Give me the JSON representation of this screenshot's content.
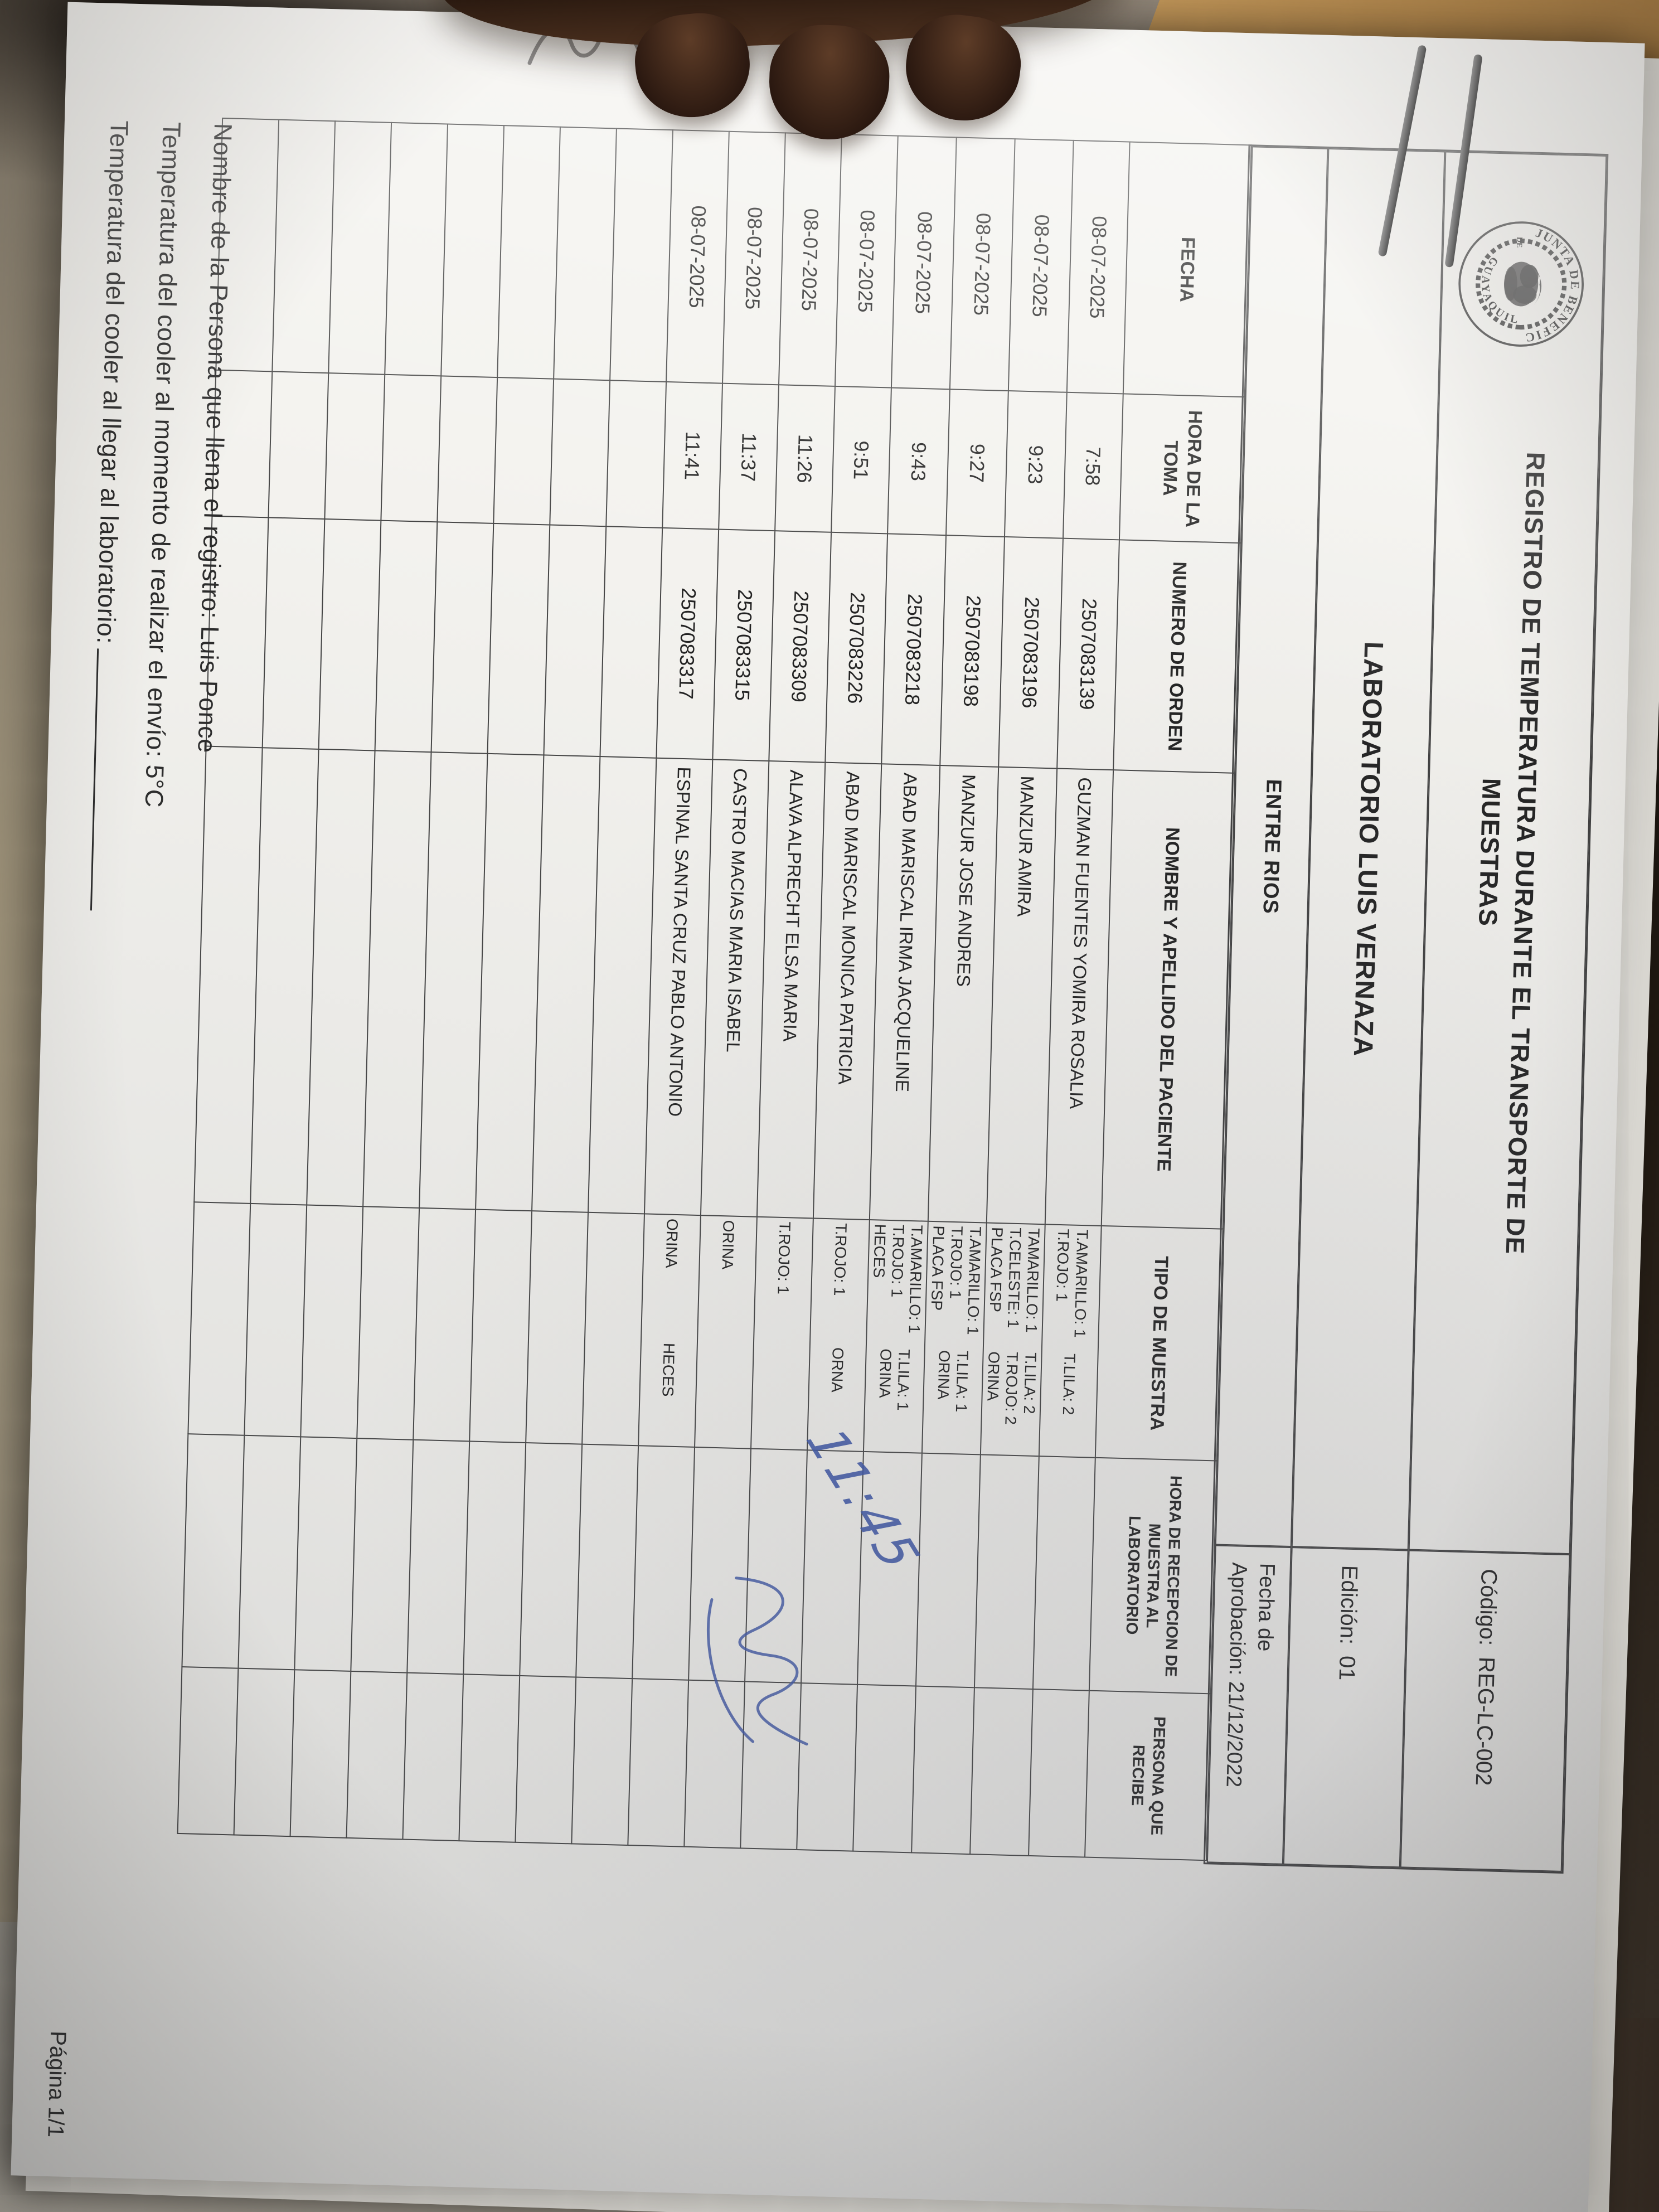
{
  "colors": {
    "ink_blue": "#3b55a8",
    "paper": "#f3f2ee",
    "table_line": "#454545"
  },
  "header": {
    "title_line1": "REGISTRO DE TEMPERATURA DURANTE EL TRANSPORTE DE",
    "title_line2": "MUESTRAS",
    "codigo_label": "Código:",
    "codigo_value": "REG-LC-002",
    "edicion_label": "Edición:",
    "edicion_value": "01",
    "fecha_label_line1": "Fecha de",
    "fecha_label_line2": "Aprobación:",
    "fecha_value": "21/12/2022",
    "laboratorio": "LABORATORIO LUIS VERNAZA",
    "sede": "ENTRE RIOS",
    "seal_top": "JUNTA DE BENEFICENCIA",
    "seal_middle": "DE",
    "seal_bottom": "GUAYAQUIL"
  },
  "table": {
    "columns": [
      "FECHA",
      "HORA DE LA TOMA",
      "NUMERO DE ORDEN",
      "NOMBRE Y APELLIDO DEL PACIENTE",
      "TIPO DE MUESTRA",
      "HORA DE RECEPCION DE MUESTRA AL LABORATORIO",
      "PERSONA QUE RECIBE"
    ],
    "rows": [
      {
        "fecha": "08-07-2025",
        "hora": "7:58",
        "orden": "2507083139",
        "nombre": "GUZMAN FUENTES YOMIRA ROSALIA",
        "tipo_left": [
          "T.AMARILLO: 1",
          "T.ROJO: 1"
        ],
        "tipo_right": [
          "T.LILA: 2"
        ],
        "recepcion": "",
        "persona": ""
      },
      {
        "fecha": "08-07-2025",
        "hora": "9:23",
        "orden": "2507083196",
        "nombre": "MANZUR AMIRA",
        "tipo_left": [
          "TAMARILLO: 1",
          "T.CELESTE: 1",
          "PLACA FSP"
        ],
        "tipo_right": [
          "T.LILA: 2",
          "T.ROJO: 2",
          "ORINA"
        ],
        "recepcion": "",
        "persona": ""
      },
      {
        "fecha": "08-07-2025",
        "hora": "9:27",
        "orden": "2507083198",
        "nombre": "MANZUR JOSE ANDRES",
        "tipo_left": [
          "T.AMARILLO: 1",
          "T.ROJO: 1",
          "PLACA FSP"
        ],
        "tipo_right": [
          "T.LILA: 1",
          "ORINA"
        ],
        "recepcion": "",
        "persona": ""
      },
      {
        "fecha": "08-07-2025",
        "hora": "9:43",
        "orden": "2507083218",
        "nombre": "ABAD MARISCAL IRMA JACQUELINE",
        "tipo_left": [
          "T.AMARILLO: 1",
          "T.ROJO: 1",
          "HECES"
        ],
        "tipo_right": [
          "T.LILA: 1",
          "ORINA"
        ],
        "recepcion": "",
        "persona": ""
      },
      {
        "fecha": "08-07-2025",
        "hora": "9:51",
        "orden": "2507083226",
        "nombre": "ABAD MARISCAL MONICA PATRICIA",
        "tipo_left": [
          "T.ROJO: 1"
        ],
        "tipo_right": [
          "ORNA"
        ],
        "recepcion": "",
        "persona": ""
      },
      {
        "fecha": "08-07-2025",
        "hora": "11:26",
        "orden": "2507083309",
        "nombre": "ALAVA ALPRECHT ELSA MARIA",
        "tipo_left": [
          "T.ROJO: 1"
        ],
        "tipo_right": [],
        "recepcion": "",
        "persona": ""
      },
      {
        "fecha": "08-07-2025",
        "hora": "11:37",
        "orden": "2507083315",
        "nombre": "CASTRO MACIAS MARIA ISABEL",
        "tipo_left": [
          "ORINA"
        ],
        "tipo_right": [],
        "recepcion": "",
        "persona": ""
      },
      {
        "fecha": "08-07-2025",
        "hora": "11:41",
        "orden": "2507083317",
        "nombre": "ESPINAL SANTA CRUZ PABLO ANTONIO",
        "tipo_left": [
          "ORINA"
        ],
        "tipo_right": [
          "HECES"
        ],
        "recepcion": "",
        "persona": ""
      },
      {
        "fecha": "",
        "hora": "",
        "orden": "",
        "nombre": "",
        "tipo_left": [],
        "tipo_right": [],
        "recepcion": "",
        "persona": ""
      },
      {
        "fecha": "",
        "hora": "",
        "orden": "",
        "nombre": "",
        "tipo_left": [],
        "tipo_right": [],
        "recepcion": "",
        "persona": ""
      },
      {
        "fecha": "",
        "hora": "",
        "orden": "",
        "nombre": "",
        "tipo_left": [],
        "tipo_right": [],
        "recepcion": "",
        "persona": ""
      },
      {
        "fecha": "",
        "hora": "",
        "orden": "",
        "nombre": "",
        "tipo_left": [],
        "tipo_right": [],
        "recepcion": "",
        "persona": ""
      },
      {
        "fecha": "",
        "hora": "",
        "orden": "",
        "nombre": "",
        "tipo_left": [],
        "tipo_right": [],
        "recepcion": "",
        "persona": ""
      },
      {
        "fecha": "",
        "hora": "",
        "orden": "",
        "nombre": "",
        "tipo_left": [],
        "tipo_right": [],
        "recepcion": "",
        "persona": ""
      },
      {
        "fecha": "",
        "hora": "",
        "orden": "",
        "nombre": "",
        "tipo_left": [],
        "tipo_right": [],
        "recepcion": "",
        "persona": ""
      },
      {
        "fecha": "",
        "hora": "",
        "orden": "",
        "nombre": "",
        "tipo_left": [],
        "tipo_right": [],
        "recepcion": "",
        "persona": ""
      }
    ]
  },
  "handwriting": {
    "recepcion_time": "11:45"
  },
  "footer": {
    "line1": "Nombre de la Persona que llena el registro: Luis Ponce",
    "line2": "Temperatura del cooler al momento de realizar el envío: 5°C",
    "line3": "Temperatura del cooler al llegar al laboratorio:",
    "pagina": "Página 1/1"
  }
}
